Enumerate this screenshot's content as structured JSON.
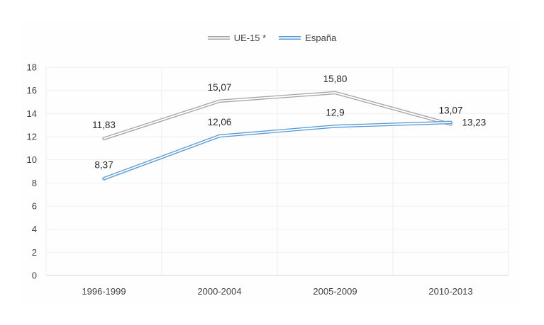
{
  "chart_data": {
    "type": "line",
    "title": "",
    "categories": [
      "1996-1999",
      "2000-2004",
      "2005-2009",
      "2010-2013"
    ],
    "series": [
      {
        "name": "UE-15 *",
        "color": "#a6a6a6",
        "values": [
          11.83,
          15.07,
          15.8,
          13.07
        ],
        "labels": [
          "11,83",
          "15,07",
          "15,80",
          "13,07"
        ],
        "label_pos": [
          "above",
          "above",
          "above",
          "above"
        ]
      },
      {
        "name": "España",
        "color": "#5b9bd5",
        "values": [
          8.37,
          12.06,
          12.9,
          13.23
        ],
        "labels": [
          "8,37",
          "12,06",
          "12,9",
          "13,23"
        ],
        "label_pos": [
          "above",
          "above",
          "above",
          "right"
        ]
      }
    ],
    "xlabel": "",
    "ylabel": "",
    "ylim": [
      0,
      18
    ],
    "y_ticks": [
      0,
      2,
      4,
      6,
      8,
      10,
      12,
      14,
      16,
      18
    ],
    "grid": true,
    "vertical_grid": true,
    "legend_position": "top",
    "decimal_separator": ","
  },
  "style": {
    "background": "#ffffff",
    "plot_background": "#fefefe",
    "gridline_color": "#efefef",
    "axis_line_color": "#d6d6d6",
    "tick_label_color": "#404040",
    "data_label_color": "#262626",
    "legend_text_color": "#404040",
    "line_inner_stroke": "#ffffff"
  }
}
